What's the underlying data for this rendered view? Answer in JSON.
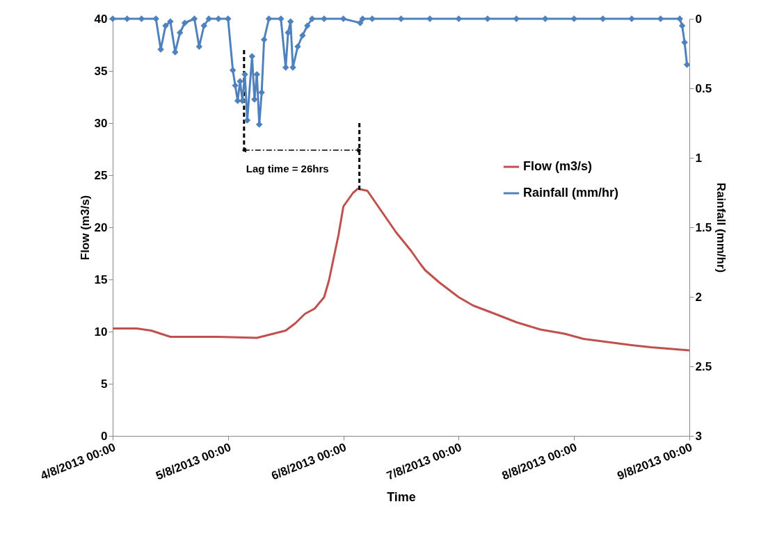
{
  "chart_data": {
    "type": "line",
    "xlabel": "Time",
    "ylabel": "Flow (m3/s)",
    "y2label": "Rainfall (mm/hr)",
    "xlim": [
      "2013-08-04T00:00",
      "2013-08-09T00:00"
    ],
    "xticks": [
      {
        "value": "2013-08-04T00:00",
        "label": "4/8/2013 00:00"
      },
      {
        "value": "2013-08-05T00:00",
        "label": "5/8/2013 00:00"
      },
      {
        "value": "2013-08-06T00:00",
        "label": "6/8/2013 00:00"
      },
      {
        "value": "2013-08-07T00:00",
        "label": "7/8/2013 00:00"
      },
      {
        "value": "2013-08-08T00:00",
        "label": "8/8/2013 00:00"
      },
      {
        "value": "2013-08-09T00:00",
        "label": "9/8/2013 00:00"
      }
    ],
    "ylim": [
      0,
      40
    ],
    "yticks": [
      0,
      5,
      10,
      15,
      20,
      25,
      30,
      35,
      40
    ],
    "y2lim": [
      3,
      0
    ],
    "y2ticks": [
      0,
      0.5,
      1,
      1.5,
      2,
      2.5,
      3
    ],
    "grid": false,
    "legend": "top right",
    "line_style": "solid",
    "series": [
      {
        "name": "Flow (m3/s)",
        "color": "#c0504d",
        "x": [
          "2013-08-04T00:00",
          "2013-08-04T05:00",
          "2013-08-04T08:00",
          "2013-08-04T12:00",
          "2013-08-04T22:00",
          "2013-08-05T06:00",
          "2013-08-05T12:00",
          "2013-08-05T14:00",
          "2013-08-05T16:00",
          "2013-08-05T18:00",
          "2013-08-05T20:00",
          "2013-08-05T21:00",
          "2013-08-05T23:00",
          "2013-08-06T00:00",
          "2013-08-06T02:00",
          "2013-08-06T03:00",
          "2013-08-06T05:00",
          "2013-08-06T08:00",
          "2013-08-06T11:00",
          "2013-08-06T14:00",
          "2013-08-06T16:00",
          "2013-08-06T17:00",
          "2013-08-06T20:00",
          "2013-08-07T00:00",
          "2013-08-07T03:00",
          "2013-08-07T07:00",
          "2013-08-07T12:00",
          "2013-08-07T17:00",
          "2013-08-07T22:00",
          "2013-08-08T02:00",
          "2013-08-08T07:00",
          "2013-08-08T12:00",
          "2013-08-08T16:00",
          "2013-08-09T00:00"
        ],
        "values": [
          10.3,
          10.3,
          10.1,
          9.5,
          9.5,
          9.4,
          10.1,
          10.8,
          11.7,
          12.2,
          13.3,
          14.9,
          19.3,
          22.0,
          23.3,
          23.7,
          23.5,
          21.5,
          19.5,
          17.8,
          16.5,
          15.9,
          14.7,
          13.3,
          12.5,
          11.8,
          10.9,
          10.2,
          9.8,
          9.3,
          9.0,
          8.7,
          8.5,
          8.2
        ]
      },
      {
        "name": "Rainfall (mm/hr)",
        "color": "#4f81bd",
        "axis": "y2",
        "marker": "diamond",
        "x": [
          "2013-08-04T00:00",
          "2013-08-04T03:00",
          "2013-08-04T06:00",
          "2013-08-04T09:00",
          "2013-08-04T10:00",
          "2013-08-04T11:00",
          "2013-08-04T12:00",
          "2013-08-04T13:00",
          "2013-08-04T14:00",
          "2013-08-04T15:00",
          "2013-08-04T17:00",
          "2013-08-04T18:00",
          "2013-08-04T19:00",
          "2013-08-04T20:00",
          "2013-08-04T22:00",
          "2013-08-05T00:00",
          "2013-08-05T01:00",
          "2013-08-05T01:30",
          "2013-08-05T02:00",
          "2013-08-05T02:30",
          "2013-08-05T03:00",
          "2013-08-05T03:30",
          "2013-08-05T04:00",
          "2013-08-05T05:00",
          "2013-08-05T05:30",
          "2013-08-05T06:00",
          "2013-08-05T06:30",
          "2013-08-05T07:00",
          "2013-08-05T07:30",
          "2013-08-05T08:30",
          "2013-08-05T11:00",
          "2013-08-05T12:00",
          "2013-08-05T12:30",
          "2013-08-05T13:00",
          "2013-08-05T13:30",
          "2013-08-05T14:30",
          "2013-08-05T15:30",
          "2013-08-05T16:30",
          "2013-08-05T17:30",
          "2013-08-05T20:00",
          "2013-08-06T00:00",
          "2013-08-06T03:30",
          "2013-08-06T04:00",
          "2013-08-06T06:00",
          "2013-08-06T12:00",
          "2013-08-06T18:00",
          "2013-08-07T00:00",
          "2013-08-07T06:00",
          "2013-08-07T12:00",
          "2013-08-07T18:00",
          "2013-08-08T00:00",
          "2013-08-08T06:00",
          "2013-08-08T12:00",
          "2013-08-08T18:00",
          "2013-08-08T22:00",
          "2013-08-08T22:30",
          "2013-08-08T23:00",
          "2013-08-08T23:30"
        ],
        "values": [
          0,
          0,
          0,
          0,
          0.22,
          0.05,
          0.02,
          0.24,
          0.1,
          0.03,
          0,
          0.2,
          0.05,
          0,
          0,
          0,
          0.37,
          0.48,
          0.59,
          0.45,
          0.59,
          0.4,
          0.73,
          0.27,
          0.58,
          0.4,
          0.76,
          0.53,
          0.15,
          0,
          0,
          0.35,
          0.1,
          0.02,
          0.35,
          0.2,
          0.12,
          0.05,
          0,
          0,
          0,
          0.03,
          0,
          0,
          0,
          0,
          0,
          0,
          0,
          0,
          0,
          0,
          0,
          0,
          0,
          0.05,
          0.17,
          0.33
        ]
      }
    ],
    "ref_lines": [
      {
        "axis": "x",
        "value": "2013-08-05T03:20",
        "color": "#000000",
        "line_style": "dashed"
      },
      {
        "axis": "x",
        "value": "2013-08-06T03:20",
        "color": "#000000",
        "line_style": "dashed"
      }
    ],
    "annotations": [
      "Lag time = 26hrs"
    ]
  }
}
